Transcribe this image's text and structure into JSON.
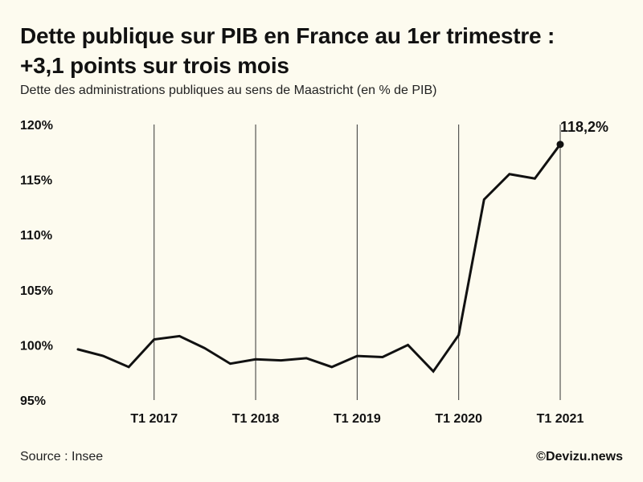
{
  "title_lines": [
    "Dette publique sur PIB en France au 1er trimestre :",
    "+3,1 points sur trois mois"
  ],
  "subtitle": "Dette des administrations publiques au sens de Maastricht (en % de PIB)",
  "footer": {
    "source": "Source : Insee",
    "credit": "©Devizu.news"
  },
  "colors": {
    "background": "#fdfbef",
    "line": "#111111",
    "gridline": "#333333"
  },
  "chart_data": {
    "type": "line",
    "title": "Dette publique sur PIB en France au 1er trimestre : +3,1 points sur trois mois",
    "subtitle": "Dette des administrations publiques au sens de Maastricht (en % de PIB)",
    "x": [
      "T2 2016",
      "T3 2016",
      "T4 2016",
      "T1 2017",
      "T2 2017",
      "T3 2017",
      "T4 2017",
      "T1 2018",
      "T2 2018",
      "T3 2018",
      "T4 2018",
      "T1 2019",
      "T2 2019",
      "T3 2019",
      "T4 2019",
      "T1 2020",
      "T2 2020",
      "T3 2020",
      "T4 2020",
      "T1 2021"
    ],
    "series": [
      {
        "values": [
          99.6,
          99.0,
          98.0,
          100.5,
          100.8,
          99.7,
          98.3,
          98.7,
          98.6,
          98.8,
          98.0,
          99.0,
          98.9,
          100.0,
          97.6,
          100.9,
          113.2,
          115.5,
          115.1,
          118.2
        ]
      }
    ],
    "x_ticks": [
      "T1 2017",
      "T1 2018",
      "T1 2019",
      "T1 2020",
      "T1 2021"
    ],
    "y_ticks": [
      {
        "value": 95,
        "label": "95%"
      },
      {
        "value": 100,
        "label": "100%"
      },
      {
        "value": 105,
        "label": "105%"
      },
      {
        "value": 110,
        "label": "110%"
      },
      {
        "value": 115,
        "label": "115%"
      },
      {
        "value": 120,
        "label": "120%"
      }
    ],
    "ylim": [
      95,
      120
    ],
    "grid": "vertical lines at each T1",
    "legend": "none",
    "annotation": {
      "x": "T1 2021",
      "value": 118.2,
      "label": "118,2%"
    }
  }
}
